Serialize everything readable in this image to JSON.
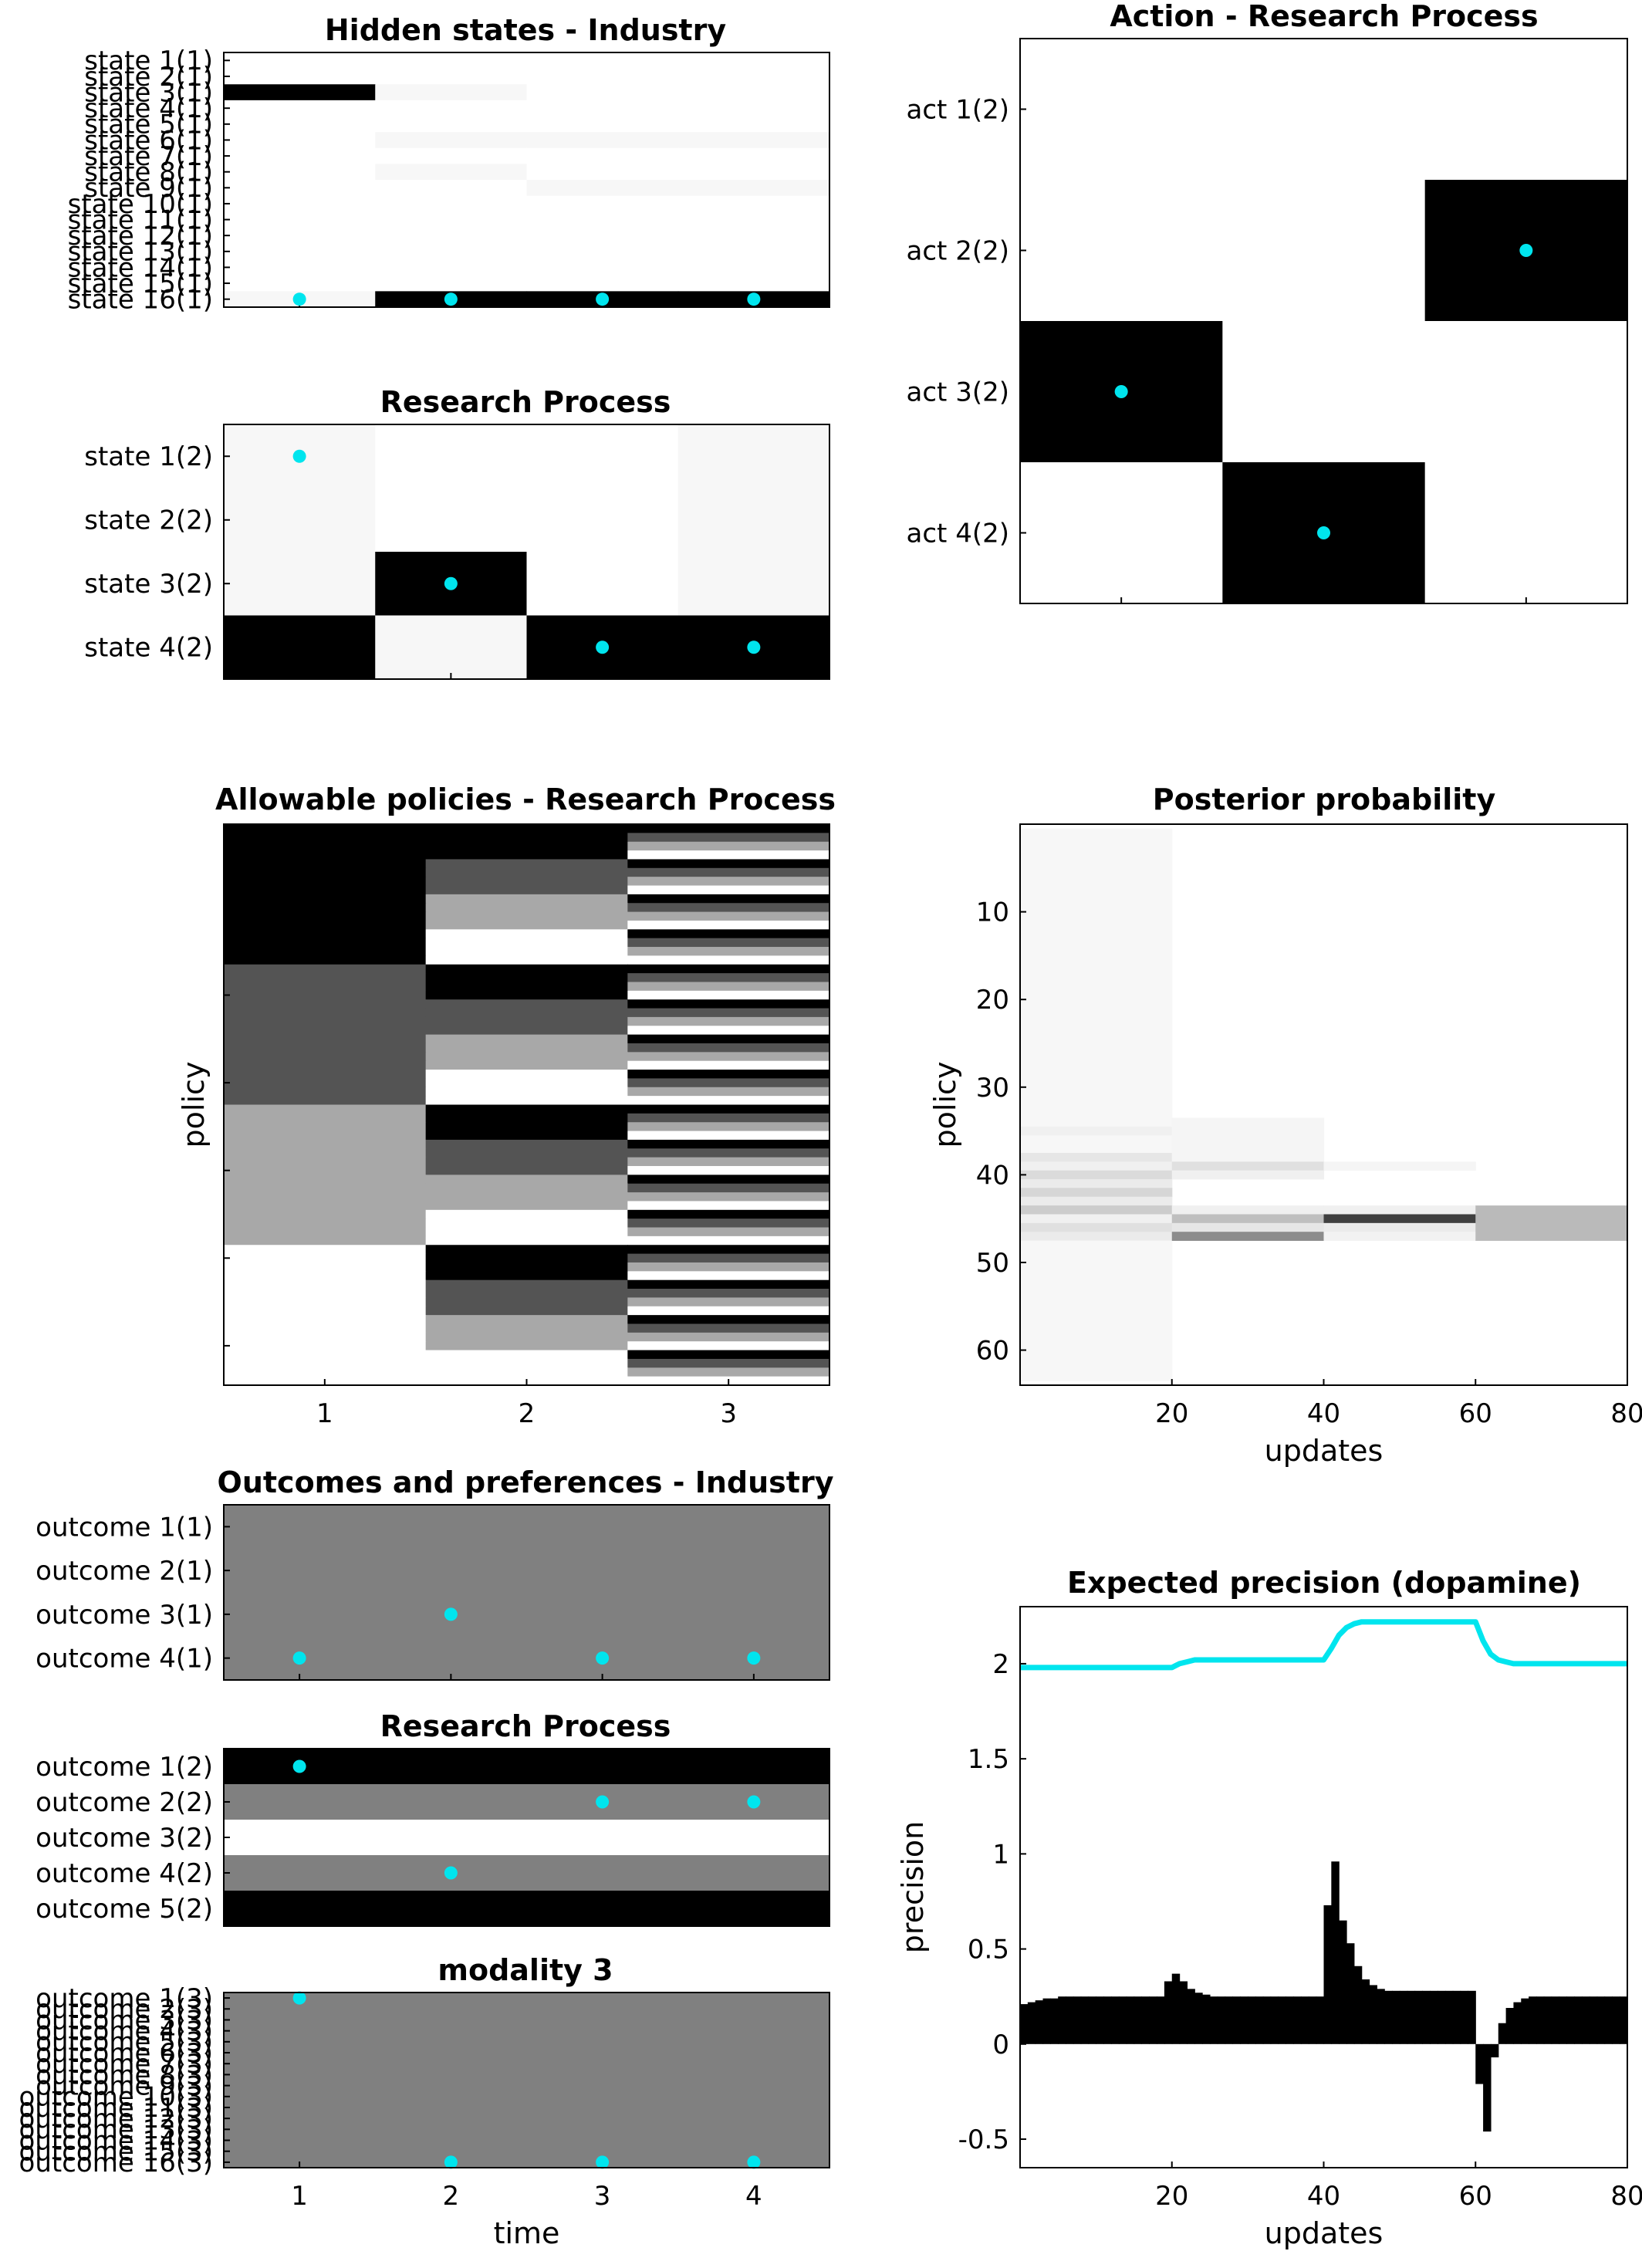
{
  "figure": {
    "title_hidden_industry": "Hidden states - Industry",
    "title_research_states": "Research Process",
    "title_action": "Action - Research Process",
    "title_policies": "Allowable policies - Research Process",
    "title_posterior": "Posterior probability",
    "title_outcomes_industry": "Outcomes and preferences - Industry",
    "title_outcomes_research": "Research Process",
    "title_modality3": "modality 3",
    "title_precision": "Expected precision (dopamine)"
  },
  "colors": {
    "marker": "#00e5ee",
    "precision_line": "#00e5ee",
    "bars": "#000000"
  },
  "chart_data": [
    {
      "id": "hidden_industry",
      "type": "heatmap",
      "title": "Hidden states - Industry",
      "ylabels": [
        "state 1(1)",
        "state 2(1)",
        "state 3(1)",
        "state 4(1)",
        "state 5(1)",
        "state 6(1)",
        "state 7(1)",
        "state 8(1)",
        "state 9(1)",
        "state 10(1)",
        "state 11(1)",
        "state 12(1)",
        "state 13(1)",
        "state 14(1)",
        "state 15(1)",
        "state 16(1)"
      ],
      "columns": 4,
      "probability": [
        [
          0,
          0,
          0,
          0
        ],
        [
          0,
          0,
          0,
          0
        ],
        [
          1,
          0.03,
          0,
          0
        ],
        [
          0,
          0,
          0,
          0
        ],
        [
          0,
          0,
          0,
          0
        ],
        [
          0,
          0.03,
          0.03,
          0.03
        ],
        [
          0,
          0,
          0,
          0
        ],
        [
          0,
          0.03,
          0,
          0
        ],
        [
          0,
          0,
          0.03,
          0.03
        ],
        [
          0,
          0,
          0,
          0
        ],
        [
          0,
          0,
          0,
          0
        ],
        [
          0,
          0,
          0,
          0
        ],
        [
          0,
          0,
          0,
          0
        ],
        [
          0,
          0,
          0,
          0
        ],
        [
          0,
          0,
          0,
          0
        ],
        [
          0.03,
          1,
          1,
          1
        ]
      ],
      "true_state": [
        16,
        16,
        16,
        16
      ]
    },
    {
      "id": "hidden_research",
      "type": "heatmap",
      "title": "Research Process",
      "ylabels": [
        "state 1(2)",
        "state 2(2)",
        "state 3(2)",
        "state 4(2)"
      ],
      "columns": 4,
      "probability": [
        [
          0.03,
          0,
          0,
          0.03
        ],
        [
          0.03,
          0,
          0,
          0.03
        ],
        [
          0.03,
          1,
          0,
          0.03
        ],
        [
          1,
          0.03,
          1,
          1
        ]
      ],
      "true_state": [
        1,
        3,
        4,
        4
      ]
    },
    {
      "id": "action_research",
      "type": "heatmap",
      "title": "Action - Research Process",
      "ylabels": [
        "act 1(2)",
        "act 2(2)",
        "act 3(2)",
        "act 4(2)"
      ],
      "columns": 3,
      "probability": [
        [
          0,
          0,
          0
        ],
        [
          0,
          0,
          1
        ],
        [
          1,
          0,
          0
        ],
        [
          0,
          1,
          0
        ]
      ],
      "chosen_action": [
        3,
        4,
        2
      ]
    },
    {
      "id": "policies",
      "type": "heatmap",
      "title": "Allowable policies - Research Process",
      "ylabel": "policy",
      "xticks": [
        "1",
        "2",
        "3"
      ],
      "n_policies": 64,
      "actions": 4,
      "action_gray": [
        0,
        0.33,
        0.66,
        1
      ]
    },
    {
      "id": "posterior",
      "type": "heatmap",
      "title": "Posterior probability",
      "xlabel": "updates",
      "ylabel": "policy",
      "xlim": [
        0,
        80
      ],
      "xticks": [
        20,
        40,
        60,
        80
      ],
      "ylim": [
        0,
        64
      ],
      "yticks": [
        10,
        20,
        30,
        40,
        50,
        60
      ],
      "epochs": [
        {
          "start": 0,
          "end": 20,
          "rows": [
            [
              1,
              35,
              0.03
            ],
            [
              35,
              36,
              0.06
            ],
            [
              36,
              38,
              0.03
            ],
            [
              38,
              39,
              0.1
            ],
            [
              39,
              40,
              0.06
            ],
            [
              40,
              41,
              0.14
            ],
            [
              41,
              42,
              0.08
            ],
            [
              42,
              43,
              0.16
            ],
            [
              43,
              44,
              0.08
            ],
            [
              44,
              45,
              0.2
            ],
            [
              45,
              46,
              0.06
            ],
            [
              46,
              47,
              0.12
            ],
            [
              47,
              48,
              0.08
            ],
            [
              48,
              64,
              0.03
            ]
          ]
        },
        {
          "start": 20,
          "end": 40,
          "rows": [
            [
              34,
              39,
              0.04
            ],
            [
              39,
              40,
              0.12
            ],
            [
              40,
              41,
              0.06
            ],
            [
              44,
              45,
              0.06
            ],
            [
              45,
              46,
              0.25
            ],
            [
              46,
              47,
              0.1
            ],
            [
              47,
              48,
              0.45
            ]
          ]
        },
        {
          "start": 40,
          "end": 60,
          "rows": [
            [
              39,
              40,
              0.04
            ],
            [
              44,
              45,
              0.06
            ],
            [
              45,
              46,
              0.75
            ],
            [
              46,
              47,
              0.08
            ],
            [
              47,
              48,
              0.05
            ]
          ]
        },
        {
          "start": 60,
          "end": 80,
          "rows": [
            [
              44,
              48,
              0.27
            ]
          ]
        }
      ]
    },
    {
      "id": "outcomes_industry",
      "type": "heatmap",
      "title": "Outcomes and preferences - Industry",
      "ylabels": [
        "outcome 1(1)",
        "outcome 2(1)",
        "outcome 3(1)",
        "outcome 4(1)"
      ],
      "columns": 4,
      "preference_gray": [
        0.5,
        0.5,
        0.5,
        0.5
      ],
      "observed": [
        4,
        3,
        4,
        4
      ]
    },
    {
      "id": "outcomes_research",
      "type": "heatmap",
      "title": "Research Process",
      "ylabels": [
        "outcome 1(2)",
        "outcome 2(2)",
        "outcome 3(2)",
        "outcome 4(2)",
        "outcome 5(2)"
      ],
      "columns": 4,
      "preference_gray": [
        0,
        0.5,
        1,
        0.5,
        0
      ],
      "observed": [
        1,
        4,
        2,
        2
      ]
    },
    {
      "id": "outcomes_modality3",
      "type": "heatmap",
      "title": "modality 3",
      "ylabels": [
        "outcome 1(3)",
        "outcome 2(3)",
        "outcome 3(3)",
        "outcome 4(3)",
        "outcome 5(3)",
        "outcome 6(3)",
        "outcome 7(3)",
        "outcome 8(3)",
        "outcome 9(3)",
        "outcome 10(3)",
        "outcome 11(3)",
        "outcome 12(3)",
        "outcome 13(3)",
        "outcome 14(3)",
        "outcome 15(3)",
        "outcome 16(3)"
      ],
      "columns": 4,
      "xlabel": "time",
      "xticks": [
        "1",
        "2",
        "3",
        "4"
      ],
      "preference_gray": 0.5,
      "observed": [
        1,
        16,
        16,
        16
      ]
    },
    {
      "id": "precision",
      "type": "line",
      "title": "Expected precision (dopamine)",
      "xlabel": "updates",
      "ylabel": "precision",
      "xlim": [
        0,
        80
      ],
      "ylim": [
        -0.65,
        2.3
      ],
      "xticks": [
        20,
        40,
        60,
        80
      ],
      "yticks": [
        "-0.5",
        "0",
        "0.5",
        "1",
        "1.5",
        "2"
      ],
      "precision_line": [
        [
          0,
          1.98
        ],
        [
          19,
          1.98
        ],
        [
          20,
          1.98
        ],
        [
          21,
          2.0
        ],
        [
          22,
          2.01
        ],
        [
          23,
          2.02
        ],
        [
          40,
          2.02
        ],
        [
          41,
          2.08
        ],
        [
          42,
          2.15
        ],
        [
          43,
          2.19
        ],
        [
          44,
          2.21
        ],
        [
          45,
          2.22
        ],
        [
          60,
          2.22
        ],
        [
          61,
          2.12
        ],
        [
          62,
          2.05
        ],
        [
          63,
          2.02
        ],
        [
          64,
          2.01
        ],
        [
          65,
          2.0
        ],
        [
          80,
          2.0
        ]
      ],
      "dopamine_bars": [
        [
          1,
          0.21
        ],
        [
          2,
          0.22
        ],
        [
          3,
          0.23
        ],
        [
          4,
          0.24
        ],
        [
          5,
          0.24
        ],
        [
          6,
          0.25
        ],
        [
          7,
          0.25
        ],
        [
          8,
          0.25
        ],
        [
          9,
          0.25
        ],
        [
          10,
          0.25
        ],
        [
          11,
          0.25
        ],
        [
          12,
          0.25
        ],
        [
          13,
          0.25
        ],
        [
          14,
          0.25
        ],
        [
          15,
          0.25
        ],
        [
          16,
          0.25
        ],
        [
          17,
          0.25
        ],
        [
          18,
          0.25
        ],
        [
          19,
          0.25
        ],
        [
          20,
          0.33
        ],
        [
          21,
          0.37
        ],
        [
          22,
          0.33
        ],
        [
          23,
          0.29
        ],
        [
          24,
          0.27
        ],
        [
          25,
          0.26
        ],
        [
          26,
          0.25
        ],
        [
          27,
          0.25
        ],
        [
          28,
          0.25
        ],
        [
          29,
          0.25
        ],
        [
          30,
          0.25
        ],
        [
          31,
          0.25
        ],
        [
          32,
          0.25
        ],
        [
          33,
          0.25
        ],
        [
          34,
          0.25
        ],
        [
          35,
          0.25
        ],
        [
          36,
          0.25
        ],
        [
          37,
          0.25
        ],
        [
          38,
          0.25
        ],
        [
          39,
          0.25
        ],
        [
          40,
          0.25
        ],
        [
          41,
          0.73
        ],
        [
          42,
          0.96
        ],
        [
          43,
          0.65
        ],
        [
          44,
          0.53
        ],
        [
          45,
          0.41
        ],
        [
          46,
          0.34
        ],
        [
          47,
          0.31
        ],
        [
          48,
          0.29
        ],
        [
          49,
          0.28
        ],
        [
          50,
          0.28
        ],
        [
          51,
          0.28
        ],
        [
          52,
          0.28
        ],
        [
          53,
          0.28
        ],
        [
          54,
          0.28
        ],
        [
          55,
          0.28
        ],
        [
          56,
          0.28
        ],
        [
          57,
          0.28
        ],
        [
          58,
          0.28
        ],
        [
          59,
          0.28
        ],
        [
          60,
          0.28
        ],
        [
          61,
          -0.21
        ],
        [
          62,
          -0.46
        ],
        [
          63,
          -0.07
        ],
        [
          64,
          0.11
        ],
        [
          65,
          0.19
        ],
        [
          66,
          0.22
        ],
        [
          67,
          0.24
        ],
        [
          68,
          0.25
        ],
        [
          69,
          0.25
        ],
        [
          70,
          0.25
        ],
        [
          71,
          0.25
        ],
        [
          72,
          0.25
        ],
        [
          73,
          0.25
        ],
        [
          74,
          0.25
        ],
        [
          75,
          0.25
        ],
        [
          76,
          0.25
        ],
        [
          77,
          0.25
        ],
        [
          78,
          0.25
        ],
        [
          79,
          0.25
        ],
        [
          80,
          0.25
        ]
      ]
    }
  ]
}
